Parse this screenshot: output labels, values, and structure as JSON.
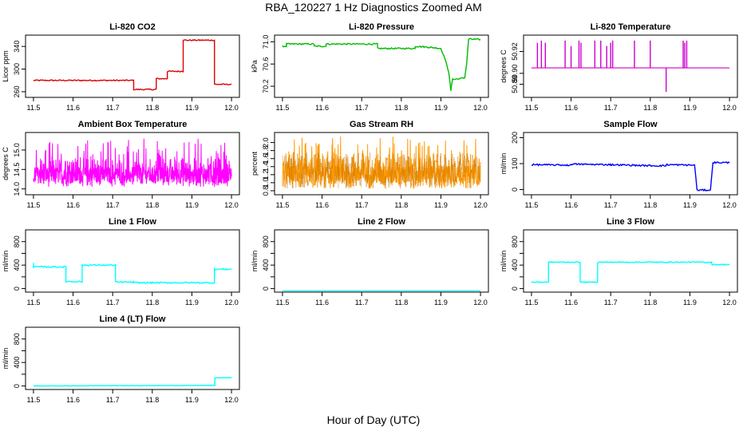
{
  "page_title": "RBA_120227  1 Hz Diagnostics Zoomed AM",
  "x_axis_title": "Hour of Day (UTC)",
  "chart_data": [
    {
      "type": "line",
      "title": "Li-820 CO2",
      "ylabel": "Licor ppm",
      "color": "#dd0000",
      "xlim": [
        11.48,
        12.02
      ],
      "ylim": [
        250,
        360
      ],
      "xticks": [
        "11.5",
        "11.6",
        "11.7",
        "11.8",
        "11.9",
        "12.0"
      ],
      "yticks": [
        260,
        300,
        340
      ],
      "noise": 1,
      "series": [
        {
          "x": [
            11.5,
            11.753,
            11.753,
            11.81,
            11.81,
            11.838,
            11.838,
            11.878,
            11.878,
            11.957,
            11.957,
            12.0
          ],
          "y": [
            280,
            280,
            264,
            264,
            283,
            283,
            296,
            296,
            351,
            351,
            273,
            273
          ]
        }
      ]
    },
    {
      "type": "line",
      "title": "Li-820 Pressure",
      "ylabel": "kPa",
      "color": "#00bb00",
      "xlim": [
        11.48,
        12.02
      ],
      "ylim": [
        70.0,
        71.12
      ],
      "xticks": [
        "11.5",
        "11.6",
        "11.7",
        "11.8",
        "11.9",
        "12.0"
      ],
      "yticks": [
        "70.2",
        "70.6",
        "71.0"
      ],
      "noise": 0.012,
      "series": [
        {
          "x": [
            11.5,
            11.51,
            11.51,
            11.58,
            11.58,
            11.61,
            11.61,
            11.74,
            11.74,
            11.835,
            11.835,
            11.875,
            11.9,
            11.91,
            11.92,
            11.925,
            11.93,
            11.93,
            11.96,
            11.965,
            11.97,
            12.0
          ],
          "y": [
            70.92,
            70.92,
            70.96,
            70.96,
            70.92,
            70.92,
            70.96,
            70.96,
            70.88,
            70.88,
            70.92,
            70.9,
            70.88,
            70.7,
            70.45,
            70.12,
            70.35,
            70.32,
            70.35,
            70.6,
            71.05,
            71.04
          ]
        }
      ]
    },
    {
      "type": "line",
      "title": "Li-820 Temperature",
      "ylabel": "degrees C",
      "color": "#cc00cc",
      "xlim": [
        11.48,
        12.02
      ],
      "ylim": [
        50.878,
        50.935
      ],
      "xticks": [
        "11.5",
        "11.6",
        "11.7",
        "11.8",
        "11.9",
        "12.0"
      ],
      "yticks": [
        "50.89",
        "50.90",
        "50.92"
      ],
      "baseline": 50.905,
      "spikes": [
        {
          "x": 11.515,
          "y": 50.928
        },
        {
          "x": 11.525,
          "y": 50.93
        },
        {
          "x": 11.535,
          "y": 50.928
        },
        {
          "x": 11.585,
          "y": 50.93
        },
        {
          "x": 11.6,
          "y": 50.925
        },
        {
          "x": 11.62,
          "y": 50.93
        },
        {
          "x": 11.625,
          "y": 50.928
        },
        {
          "x": 11.66,
          "y": 50.93
        },
        {
          "x": 11.675,
          "y": 50.93
        },
        {
          "x": 11.69,
          "y": 50.925
        },
        {
          "x": 11.7,
          "y": 50.928
        },
        {
          "x": 11.705,
          "y": 50.93
        },
        {
          "x": 11.76,
          "y": 50.93
        },
        {
          "x": 11.8,
          "y": 50.93
        },
        {
          "x": 11.84,
          "y": 50.883
        },
        {
          "x": 11.883,
          "y": 50.93
        },
        {
          "x": 11.887,
          "y": 50.928
        },
        {
          "x": 11.892,
          "y": 50.93
        }
      ]
    },
    {
      "type": "line",
      "title": "Ambient Box Temperature",
      "ylabel": "degrees C",
      "color": "#ff00ff",
      "xlim": [
        11.48,
        12.02
      ],
      "ylim": [
        13.85,
        15.45
      ],
      "xticks": [
        "11.5",
        "11.6",
        "11.7",
        "11.8",
        "11.9",
        "12.0"
      ],
      "yticks": [
        "14.0",
        "14.5",
        "15.0"
      ],
      "noise_band": [
        14.05,
        15.3
      ],
      "center": 14.35
    },
    {
      "type": "line",
      "title": "Gas Stream RH",
      "ylabel": "percent",
      "color": "#ff9900",
      "xlim": [
        11.48,
        12.02
      ],
      "ylim": [
        0.7,
        2.25
      ],
      "xticks": [
        "11.5",
        "11.6",
        "11.7",
        "11.8",
        "11.9",
        "12.0"
      ],
      "yticks": [
        "0.8",
        "1.0",
        "1.2",
        "1.4",
        "1.6",
        "1.8",
        "2.0"
      ],
      "noise_band": [
        0.85,
        2.15
      ],
      "center": 1.2
    },
    {
      "type": "line",
      "title": "Sample Flow",
      "ylabel": "ml/min",
      "color": "#0000ff",
      "xlim": [
        11.48,
        12.02
      ],
      "ylim": [
        -20,
        220
      ],
      "xticks": [
        "11.5",
        "11.6",
        "11.7",
        "11.8",
        "11.9",
        "12.0"
      ],
      "yticks": [
        0,
        100,
        200
      ],
      "noise": 3,
      "series": [
        {
          "x": [
            11.5,
            11.6,
            11.6,
            11.7,
            11.8,
            11.84,
            11.84,
            11.912,
            11.918,
            11.952,
            11.958,
            12.0
          ],
          "y": [
            96,
            94,
            98,
            96,
            92,
            92,
            96,
            94,
            -2,
            -2,
            104,
            104
          ]
        }
      ]
    },
    {
      "type": "line",
      "title": "Line 1 Flow",
      "ylabel": "ml/min",
      "color": "#00ffff",
      "xlim": [
        11.48,
        12.02
      ],
      "ylim": [
        -60,
        1000
      ],
      "xticks": [
        "11.5",
        "11.6",
        "11.7",
        "11.8",
        "11.9",
        "12.0"
      ],
      "yticks": [
        0,
        400,
        800
      ],
      "yticks_minor": [
        200,
        600
      ],
      "noise": 12,
      "series": [
        {
          "x": [
            11.5,
            11.5,
            11.582,
            11.582,
            11.623,
            11.623,
            11.707,
            11.707,
            11.752,
            11.752,
            11.957,
            11.957,
            12.0
          ],
          "y": [
            450,
            370,
            370,
            120,
            120,
            400,
            400,
            110,
            110,
            100,
            100,
            330,
            330
          ]
        }
      ]
    },
    {
      "type": "line",
      "title": "Line 2 Flow",
      "ylabel": "ml/min",
      "color": "#00ffff",
      "xlim": [
        11.48,
        12.02
      ],
      "ylim": [
        -60,
        1000
      ],
      "xticks": [
        "11.5",
        "11.6",
        "11.7",
        "11.8",
        "11.9",
        "12.0"
      ],
      "yticks": [
        0,
        400,
        800
      ],
      "yticks_minor": [
        200,
        600
      ],
      "noise": 0,
      "series": [
        {
          "x": [
            11.5,
            12.0
          ],
          "y": [
            -40,
            -40
          ]
        }
      ]
    },
    {
      "type": "line",
      "title": "Line 3 Flow",
      "ylabel": "ml/min",
      "color": "#00ffff",
      "xlim": [
        11.48,
        12.02
      ],
      "ylim": [
        -60,
        1000
      ],
      "xticks": [
        "11.5",
        "11.6",
        "11.7",
        "11.8",
        "11.9",
        "12.0"
      ],
      "yticks": [
        0,
        400,
        800
      ],
      "yticks_minor": [
        200,
        600
      ],
      "noise": 8,
      "series": [
        {
          "x": [
            11.5,
            11.543,
            11.543,
            11.623,
            11.623,
            11.667,
            11.667,
            11.955,
            11.955,
            12.0
          ],
          "y": [
            110,
            110,
            450,
            450,
            110,
            110,
            450,
            450,
            410,
            410
          ]
        }
      ]
    },
    {
      "type": "line",
      "title": "Line 4 (LT) Flow",
      "ylabel": "ml/min",
      "color": "#00ffff",
      "xlim": [
        11.48,
        12.02
      ],
      "ylim": [
        -60,
        1000
      ],
      "xticks": [
        "11.5",
        "11.6",
        "11.7",
        "11.8",
        "11.9",
        "12.0"
      ],
      "yticks": [
        0,
        400,
        800
      ],
      "yticks_minor": [
        200,
        600
      ],
      "noise": 3,
      "series": [
        {
          "x": [
            11.5,
            11.958,
            11.958,
            12.0
          ],
          "y": [
            0,
            10,
            140,
            140
          ]
        }
      ]
    }
  ]
}
